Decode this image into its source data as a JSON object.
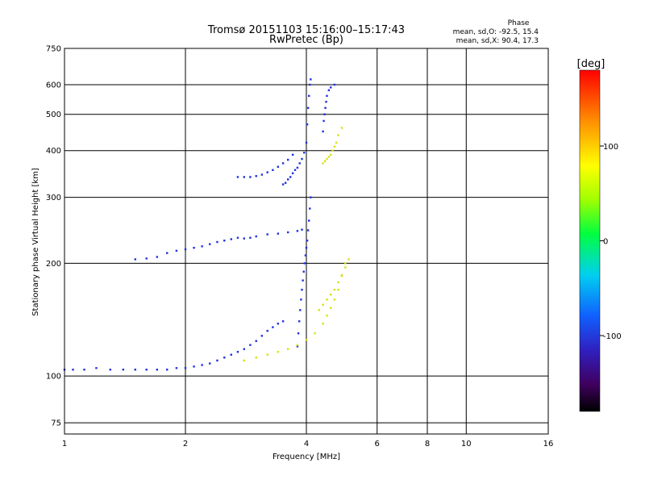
{
  "chart_data": {
    "type": "scatter",
    "title": "Tromsø 20151103 15:16:00–15:17:43",
    "subtitle": "RwPretec (Bp)",
    "xlabel": "Frequency [MHz]",
    "ylabel": "Stationary phase Virtual Height [km]",
    "x_scale": "log",
    "y_scale": "log",
    "xlim": [
      1,
      16
    ],
    "ylim": [
      70,
      750
    ],
    "x_ticks": [
      1,
      2,
      4,
      6,
      8,
      10,
      16
    ],
    "y_ticks": [
      75,
      100,
      200,
      300,
      400,
      500,
      600,
      750
    ],
    "grid": true,
    "stats": {
      "title": "Phase",
      "o_line": "mean, sd,O: -92.5, 15.4",
      "x_line": "mean, sd,X: 90.4, 17.3"
    },
    "colorbar": {
      "label": "[deg]",
      "range": [
        -180,
        180
      ],
      "ticks": [
        100,
        0,
        -100
      ],
      "colormap": "rainbow"
    },
    "series": [
      {
        "mode": "O",
        "mean_phase": -92.5,
        "color": "#2030e0",
        "traces": [
          {
            "x": [
              1.0,
              1.05,
              1.12,
              1.2,
              1.3,
              1.4,
              1.5,
              1.6,
              1.7,
              1.8,
              1.9,
              2.0,
              2.1,
              2.2,
              2.3,
              2.4,
              2.5,
              2.6,
              2.7,
              2.8,
              2.9,
              3.0,
              3.1,
              3.2,
              3.3,
              3.4,
              3.5
            ],
            "y": [
              104,
              104,
              104,
              105,
              104,
              104,
              104,
              104,
              104,
              104,
              105,
              105,
              106,
              107,
              108,
              110,
              112,
              114,
              116,
              118,
              121,
              124,
              128,
              132,
              135,
              138,
              140
            ]
          },
          {
            "x": [
              1.5,
              1.6,
              1.7,
              1.8,
              1.9,
              2.0,
              2.1,
              2.2,
              2.3,
              2.4,
              2.5,
              2.6,
              2.7,
              2.8,
              2.9,
              3.0,
              3.2,
              3.4,
              3.6,
              3.8,
              3.9
            ],
            "y": [
              205,
              206,
              208,
              213,
              216,
              218,
              220,
              222,
              225,
              228,
              230,
              232,
              234,
              233,
              234,
              236,
              239,
              240,
              242,
              244,
              246
            ]
          },
          {
            "x": [
              3.5,
              3.55,
              3.6,
              3.65,
              3.7,
              3.75,
              3.8,
              3.85,
              3.9,
              3.95,
              4.0,
              4.02,
              4.04,
              4.06,
              4.08,
              4.1
            ],
            "y": [
              325,
              328,
              335,
              340,
              348,
              355,
              360,
              370,
              380,
              395,
              420,
              470,
              520,
              560,
              600,
              620
            ]
          },
          {
            "x": [
              2.7,
              2.8,
              2.9,
              3.0,
              3.1,
              3.2,
              3.3,
              3.4,
              3.5,
              3.6,
              3.7
            ],
            "y": [
              340,
              340,
              340,
              342,
              345,
              350,
              355,
              362,
              370,
              378,
              390
            ]
          },
          {
            "x": [
              3.8,
              3.82,
              3.84,
              3.86,
              3.88,
              3.9,
              3.92,
              3.94,
              3.96,
              3.98,
              4.0,
              4.02,
              4.04,
              4.06,
              4.08,
              4.1
            ],
            "y": [
              120,
              130,
              140,
              150,
              160,
              170,
              180,
              190,
              200,
              210,
              220,
              230,
              245,
              260,
              280,
              300
            ]
          },
          {
            "x": [
              4.4,
              4.42,
              4.44,
              4.46,
              4.48,
              4.5,
              4.55,
              4.6,
              4.7
            ],
            "y": [
              450,
              480,
              500,
              520,
              540,
              560,
              580,
              590,
              600
            ]
          }
        ]
      },
      {
        "mode": "X",
        "mean_phase": 90.4,
        "color": "#d8e010",
        "traces": [
          {
            "x": [
              2.8,
              3.0,
              3.2,
              3.4,
              3.6,
              3.8,
              4.0,
              4.2,
              4.4,
              4.5,
              4.6,
              4.7,
              4.8,
              4.9,
              5.0
            ],
            "y": [
              110,
              112,
              114,
              116,
              118,
              121,
              125,
              130,
              138,
              145,
              152,
              160,
              170,
              185,
              200
            ]
          },
          {
            "x": [
              4.4,
              4.45,
              4.5,
              4.55,
              4.6,
              4.65,
              4.7,
              4.75,
              4.8,
              4.9
            ],
            "y": [
              370,
              375,
              380,
              385,
              390,
              400,
              410,
              420,
              440,
              460
            ]
          },
          {
            "x": [
              4.3,
              4.4,
              4.5,
              4.6,
              4.7,
              4.8,
              4.9,
              5.0,
              5.1
            ],
            "y": [
              150,
              155,
              160,
              165,
              170,
              178,
              186,
              195,
              205
            ]
          }
        ]
      }
    ]
  }
}
